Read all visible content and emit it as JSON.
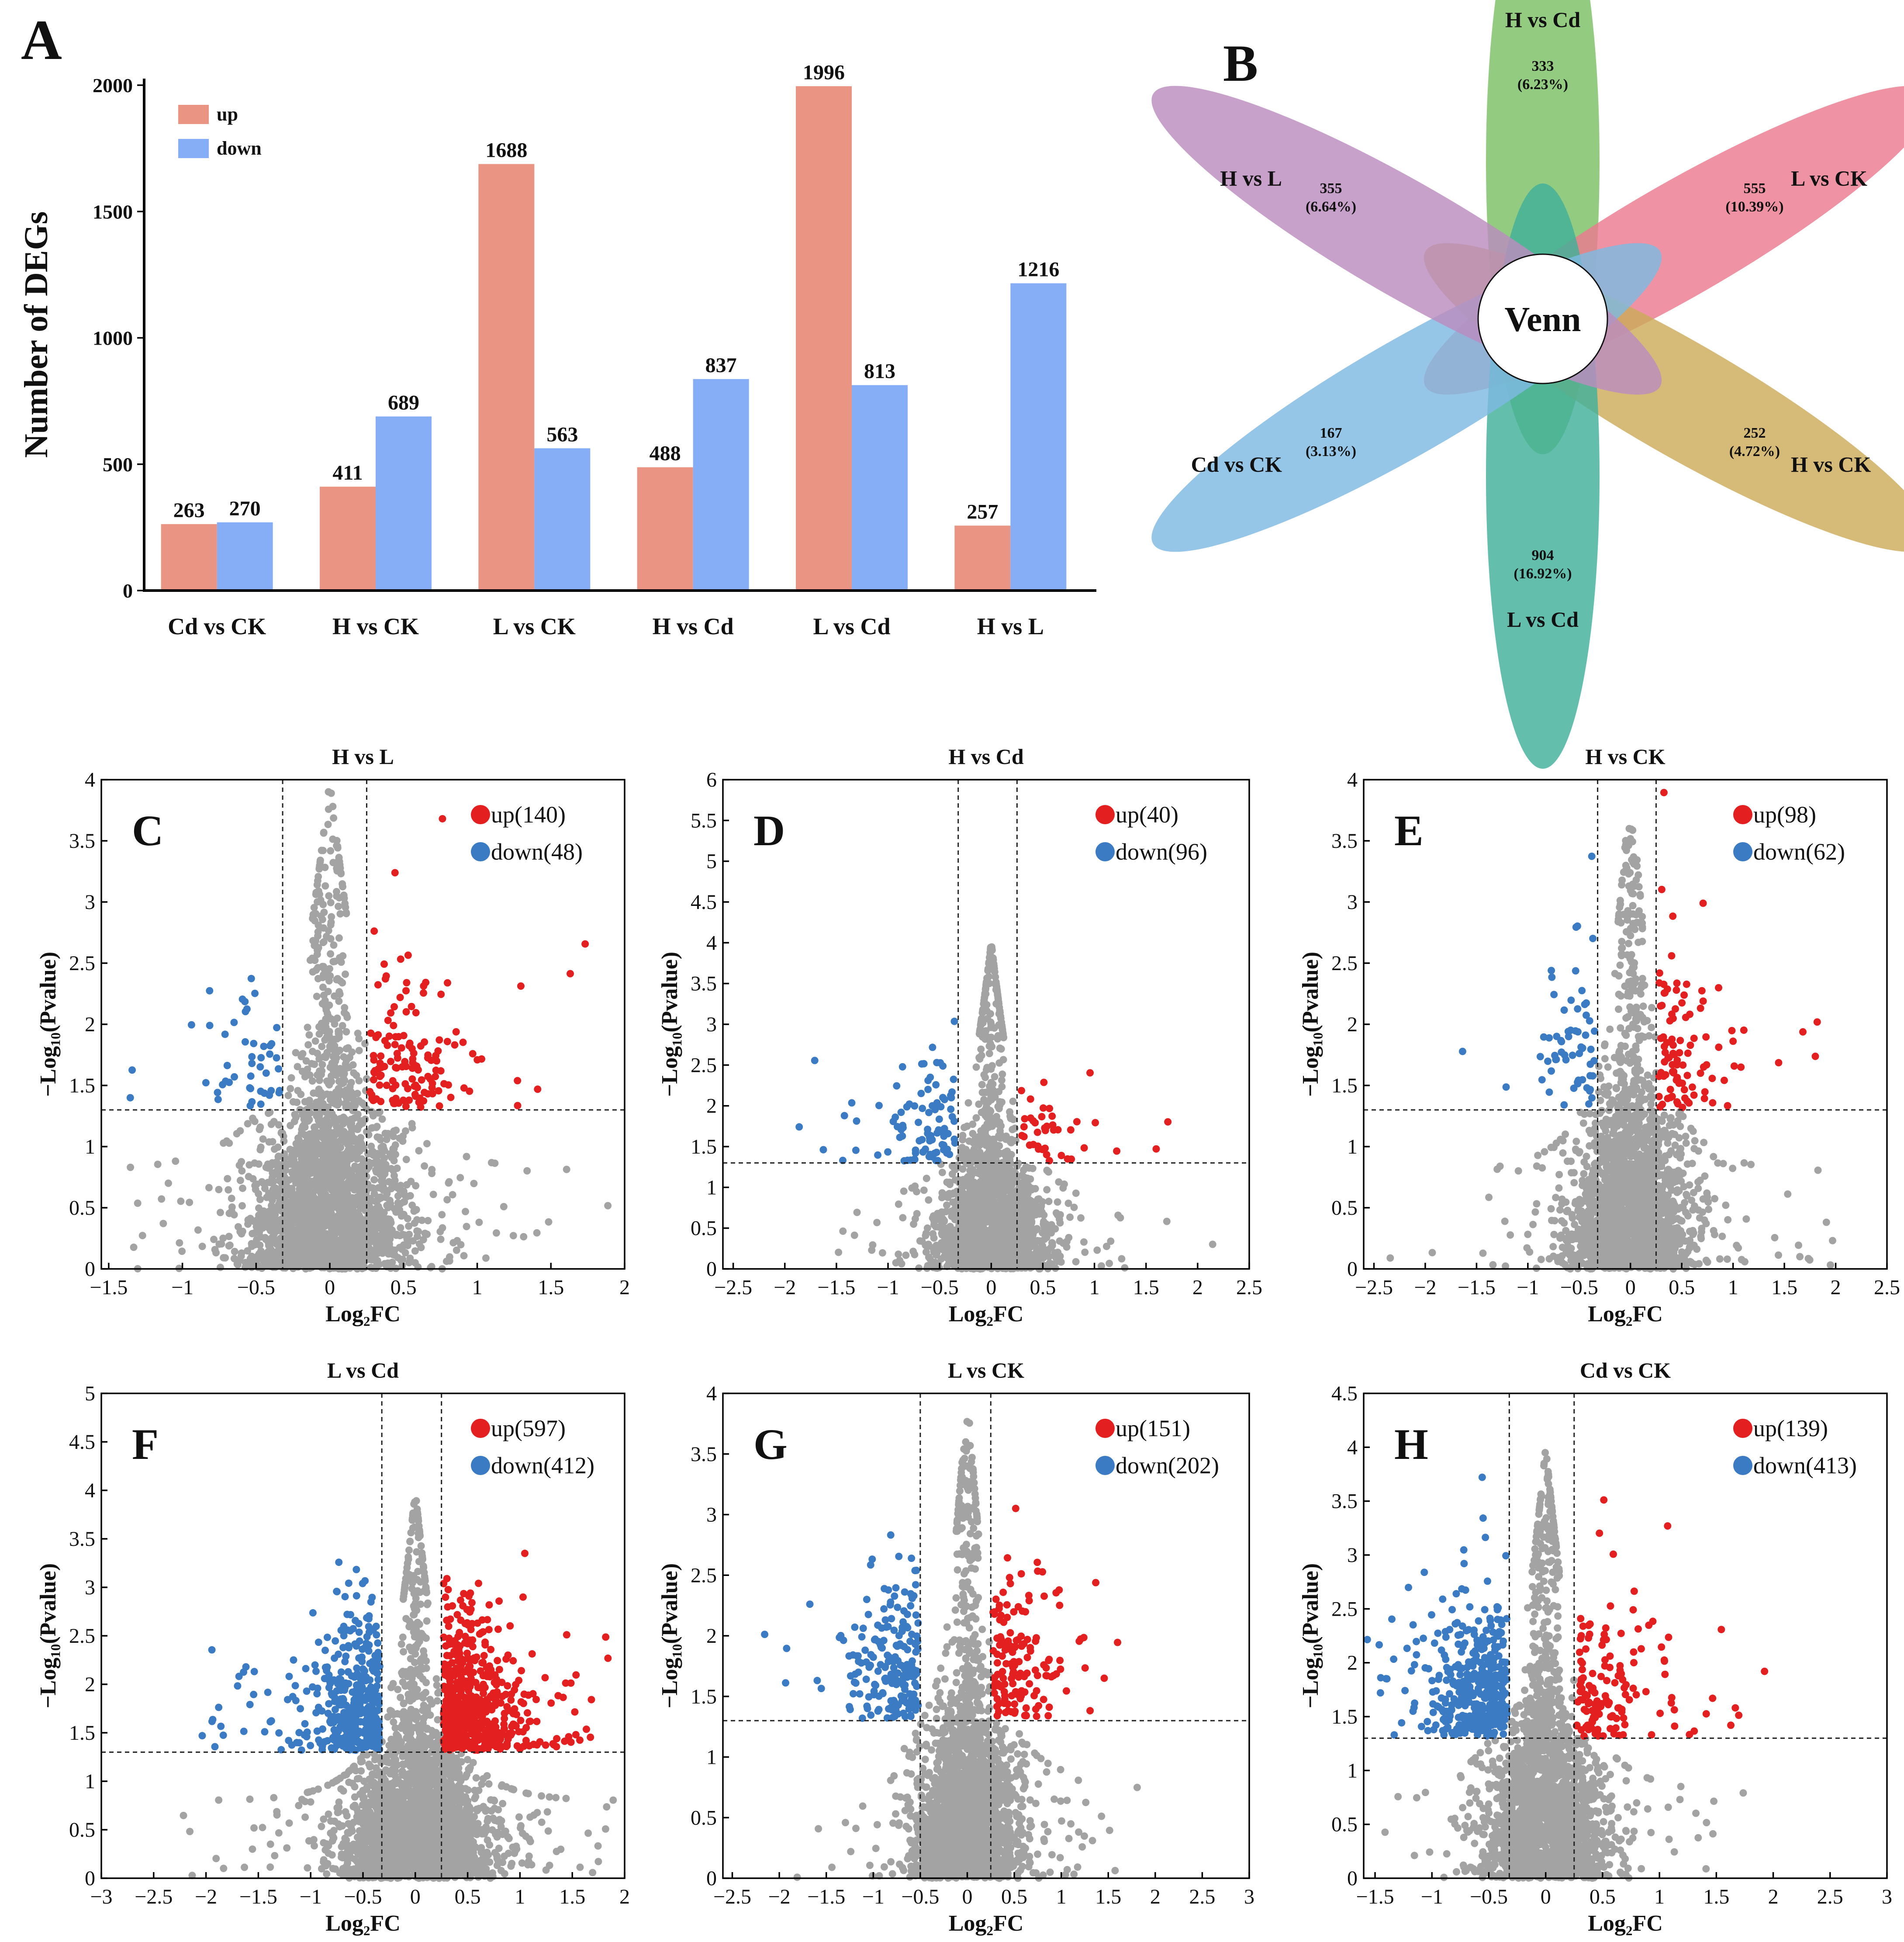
{
  "colors": {
    "up_bar": "#EA9483",
    "down_bar": "#86AEF7",
    "sig_up": "#E31F1F",
    "sig_down": "#3B7BC4",
    "ns": "#A3A3A3",
    "venn": [
      "#7BC064",
      "#EC7A8F",
      "#CCAB5A",
      "#41B09A",
      "#7EB9E2",
      "#BB8CBE"
    ]
  },
  "chart_data": [
    {
      "panel": "A",
      "type": "bar",
      "title": "",
      "xlabel": "",
      "ylabel": "Number of DEGs",
      "ylim": [
        0,
        2000
      ],
      "yticks": [
        "0",
        "500",
        "1000",
        "1500",
        "2000"
      ],
      "ytick_values": [
        0,
        500,
        1000,
        1500,
        2000
      ],
      "categories": [
        "Cd vs CK",
        "H vs CK",
        "L vs CK",
        "H vs Cd",
        "L vs Cd",
        "H vs L"
      ],
      "series": [
        {
          "name": "up",
          "values": [
            263,
            411,
            1688,
            488,
            1996,
            257
          ],
          "labels": [
            "263",
            "411",
            "1688",
            "488",
            "1996",
            "257"
          ]
        },
        {
          "name": "down",
          "values": [
            270,
            689,
            563,
            837,
            813,
            1216
          ],
          "labels": [
            "270",
            "689",
            "563",
            "837",
            "813",
            "1216"
          ]
        }
      ],
      "legend": "top-left"
    },
    {
      "panel": "B",
      "type": "venn",
      "center_label": "Venn",
      "sets": [
        {
          "name": "H vs Cd",
          "count": "333",
          "percent": "(6.23%)"
        },
        {
          "name": "L vs CK",
          "count": "555",
          "percent": "(10.39%)"
        },
        {
          "name": "H vs CK",
          "count": "252",
          "percent": "(4.72%)"
        },
        {
          "name": "L vs Cd",
          "count": "904",
          "percent": "(16.92%)"
        },
        {
          "name": "Cd vs CK",
          "count": "167",
          "percent": "(3.13%)"
        },
        {
          "name": "H vs L",
          "count": "355",
          "percent": "(6.64%)"
        }
      ]
    },
    {
      "panel": "C",
      "type": "scatter",
      "title": "H vs L",
      "xlabel": "Log₂FC",
      "ylabel": "−Log₁₀(Pvalue)",
      "xlim": [
        -1.55,
        2
      ],
      "ylim": [
        0,
        4
      ],
      "xticks": [
        "−1.5",
        "−1",
        "−0.5",
        "0",
        "0.5",
        "1",
        "1.5",
        "2"
      ],
      "xtick_values": [
        -1.5,
        -1,
        -0.5,
        0,
        0.5,
        1,
        1.5,
        2
      ],
      "yticks": [
        "0",
        "0.5",
        "1",
        "1.5",
        "2",
        "2.5",
        "3",
        "3.5",
        "4"
      ],
      "ytick_values": [
        0,
        0.5,
        1,
        1.5,
        2,
        2.5,
        3,
        3.5,
        4
      ],
      "fc_cut": [
        -0.32,
        0.25
      ],
      "p_cut": 1.3,
      "up_label": "up(140)",
      "down_label": "down(48)",
      "up_count": 140,
      "down_count": 48,
      "seed": 11,
      "n_ns": 2300,
      "spread": 0.55,
      "peak": 4.0
    },
    {
      "panel": "D",
      "type": "scatter",
      "title": "H vs Cd",
      "xlabel": "Log₂FC",
      "ylabel": "−Log₁₀(Pvalue)",
      "xlim": [
        -2.6,
        2.5
      ],
      "ylim": [
        0,
        6
      ],
      "xticks": [
        "−2.5",
        "−2",
        "−1.5",
        "−1",
        "−0.5",
        "0",
        "0.5",
        "1",
        "1.5",
        "2",
        "2.5"
      ],
      "xtick_values": [
        -2.5,
        -2,
        -1.5,
        -1,
        -0.5,
        0,
        0.5,
        1,
        1.5,
        2,
        2.5
      ],
      "yticks": [
        "0",
        "0.5",
        "1",
        "1.5",
        "2",
        "2.5",
        "3",
        "3.5",
        "4",
        "4.5",
        "5",
        "5.5",
        "6"
      ],
      "ytick_values": [
        0,
        0.5,
        1,
        1.5,
        2,
        2.5,
        3,
        3.5,
        4,
        4.5,
        5,
        5.5,
        6
      ],
      "fc_cut": [
        -0.32,
        0.25
      ],
      "p_cut": 1.3,
      "up_label": "up(40)",
      "down_label": "down(96)",
      "up_count": 40,
      "down_count": 96,
      "seed": 23,
      "n_ns": 1900,
      "spread": 0.55,
      "peak": 5.6
    },
    {
      "panel": "E",
      "type": "scatter",
      "title": "H vs CK",
      "xlabel": "Log₂FC",
      "ylabel": "−Log₁₀(Pvalue)",
      "xlim": [
        -2.6,
        2.5
      ],
      "ylim": [
        0,
        4
      ],
      "xticks": [
        "−2.5",
        "−2",
        "−1.5",
        "−1",
        "−0.5",
        "0",
        "0.5",
        "1",
        "1.5",
        "2",
        "2.5"
      ],
      "xtick_values": [
        -2.5,
        -2,
        -1.5,
        -1,
        -0.5,
        0,
        0.5,
        1,
        1.5,
        2,
        2.5
      ],
      "yticks": [
        "0",
        "0.5",
        "1",
        "1.5",
        "2",
        "2.5",
        "3",
        "3.5",
        "4"
      ],
      "ytick_values": [
        0,
        0.5,
        1,
        1.5,
        2,
        2.5,
        3,
        3.5,
        4
      ],
      "fc_cut": [
        -0.32,
        0.25
      ],
      "p_cut": 1.3,
      "up_label": "up(98)",
      "down_label": "down(62)",
      "up_count": 98,
      "down_count": 62,
      "seed": 37,
      "n_ns": 2100,
      "spread": 0.6,
      "peak": 3.6
    },
    {
      "panel": "F",
      "type": "scatter",
      "title": "L vs Cd",
      "xlabel": "Log₂FC",
      "ylabel": "−Log₁₀(Pvalue)",
      "xlim": [
        -3,
        2
      ],
      "ylim": [
        0,
        5
      ],
      "xticks": [
        "−3",
        "−2.5",
        "−2",
        "−1.5",
        "−1",
        "−0.5",
        "0",
        "0.5",
        "1",
        "1.5",
        "2"
      ],
      "xtick_values": [
        -3,
        -2.5,
        -2,
        -1.5,
        -1,
        -0.5,
        0,
        0.5,
        1,
        1.5,
        2
      ],
      "yticks": [
        "0",
        "0.5",
        "1",
        "1.5",
        "2",
        "2.5",
        "3",
        "3.5",
        "4",
        "4.5",
        "5"
      ],
      "ytick_values": [
        0,
        0.5,
        1,
        1.5,
        2,
        2.5,
        3,
        3.5,
        4,
        4.5,
        5
      ],
      "fc_cut": [
        -0.32,
        0.25
      ],
      "p_cut": 1.3,
      "up_label": "up(597)",
      "down_label": "down(412)",
      "up_count": 597,
      "down_count": 412,
      "seed": 41,
      "n_ns": 2600,
      "spread": 0.7,
      "peak": 4.7
    },
    {
      "panel": "G",
      "type": "scatter",
      "title": "L vs CK",
      "xlabel": "Log₂FC",
      "ylabel": "−Log₁₀(Pvalue)",
      "xlim": [
        -2.6,
        3
      ],
      "ylim": [
        0,
        4
      ],
      "xticks": [
        "−2.5",
        "−2",
        "−1.5",
        "−1",
        "−0.5",
        "0",
        "0.5",
        "1",
        "1.5",
        "2",
        "2.5",
        "3"
      ],
      "xtick_values": [
        -2.5,
        -2,
        -1.5,
        -1,
        -0.5,
        0,
        0.5,
        1,
        1.5,
        2,
        2.5,
        3
      ],
      "yticks": [
        "0",
        "0.5",
        "1",
        "1.5",
        "2",
        "2.5",
        "3",
        "3.5",
        "4"
      ],
      "ytick_values": [
        0,
        0.5,
        1,
        1.5,
        2,
        2.5,
        3,
        3.5,
        4
      ],
      "fc_cut": [
        -0.5,
        0.25
      ],
      "p_cut": 1.3,
      "up_label": "up(151)",
      "down_label": "down(202)",
      "up_count": 151,
      "down_count": 202,
      "seed": 53,
      "n_ns": 2100,
      "spread": 0.6,
      "peak": 3.9
    },
    {
      "panel": "H",
      "type": "scatter",
      "title": "Cd vs CK",
      "xlabel": "Log₂FC",
      "ylabel": "−Log₁₀(Pvalue)",
      "xlim": [
        -1.6,
        3
      ],
      "ylim": [
        0,
        4.5
      ],
      "xticks": [
        "−1.5",
        "−1",
        "−0.5",
        "0",
        "0.5",
        "1",
        "1.5",
        "2",
        "2.5",
        "3"
      ],
      "xtick_values": [
        -1.5,
        -1,
        -0.5,
        0,
        0.5,
        1,
        1.5,
        2,
        2.5,
        3
      ],
      "yticks": [
        "0",
        "0.5",
        "1",
        "1.5",
        "2",
        "2.5",
        "3",
        "3.5",
        "4",
        "4.5"
      ],
      "ytick_values": [
        0,
        0.5,
        1,
        1.5,
        2,
        2.5,
        3,
        3.5,
        4,
        4.5
      ],
      "fc_cut": [
        -0.32,
        0.25
      ],
      "p_cut": 1.3,
      "up_label": "up(139)",
      "down_label": "down(413)",
      "up_count": 139,
      "down_count": 413,
      "seed": 67,
      "n_ns": 2200,
      "spread": 0.55,
      "peak": 4.3
    }
  ]
}
